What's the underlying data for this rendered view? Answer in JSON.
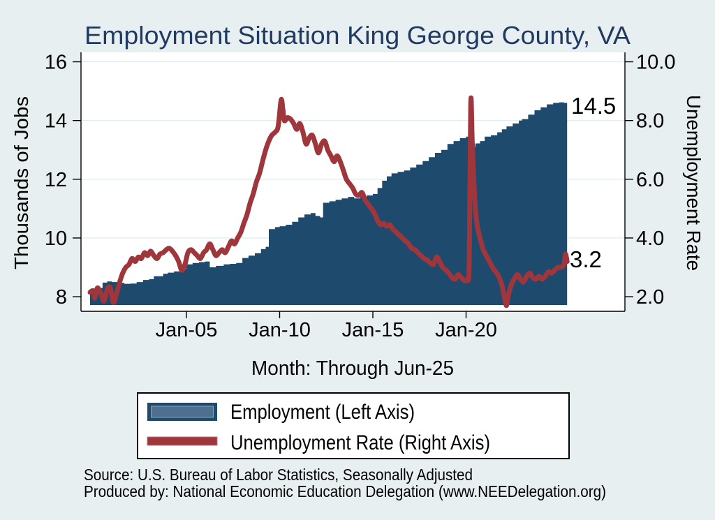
{
  "title": "Employment Situation King George  County, VA",
  "annotations": {
    "employment_end": "14.5",
    "unemployment_end": "3.2"
  },
  "legend": {
    "items": [
      {
        "label": "Employment (Left Axis)",
        "swatch": "navy-bar"
      },
      {
        "label": "Unemployment Rate (Right Axis)",
        "swatch": "red-line"
      }
    ]
  },
  "footer": {
    "source": "Source: U.S. Bureau of Labor Statistics, Seasonally Adjusted",
    "produced_by": "Produced by: National Economic Education Delegation (www.NEEDelegation.org)"
  },
  "colors": {
    "background": "#e8eff1",
    "plot_background": "#ffffff",
    "employment_fill": "#1e4a6e",
    "legend_bar_inner": "#4d7090",
    "unemployment_line": "#9e363c",
    "title_text": "#203a61",
    "gridline": "#dce9ec"
  },
  "chart_data": {
    "type": "line",
    "title": "Employment Situation King George  County, VA",
    "xlabel": "Month: Through Jun-25",
    "x_axis": {
      "ticks": [
        "Jan-05",
        "Jan-10",
        "Jan-15",
        "Jan-20"
      ],
      "tick_years": [
        2005,
        2010,
        2015,
        2020
      ],
      "data_range_years": [
        1999.83,
        2025.42
      ]
    },
    "y_axis_left": {
      "label": "Thousands of Jobs",
      "ticks": [
        "8",
        "10",
        "12",
        "14",
        "16"
      ],
      "tick_values": [
        8,
        10,
        12,
        14,
        16
      ],
      "range": [
        7.7,
        16.3
      ]
    },
    "y_axis_right": {
      "label": "Unemployment Rate",
      "ticks": [
        "2.0",
        "4.0",
        "6.0",
        "8.0",
        "10.0"
      ],
      "tick_values": [
        2,
        4,
        6,
        8,
        10
      ],
      "range": [
        1.7,
        10.3
      ]
    },
    "grid": {
      "horizontal_at_left_values": [
        10,
        12,
        14,
        16
      ]
    },
    "legend_position": "bottom",
    "series": [
      {
        "name": "Employment (Left Axis)",
        "kind": "area-step",
        "axis": "left",
        "units": "thousands of jobs",
        "end_label": "14.5",
        "points": [
          [
            1999.83,
            8.15
          ],
          [
            2000.0,
            8.1
          ],
          [
            2000.25,
            8.15
          ],
          [
            2000.42,
            8.3
          ],
          [
            2000.5,
            8.48
          ],
          [
            2000.75,
            8.52
          ],
          [
            2001.0,
            8.5
          ],
          [
            2001.33,
            8.47
          ],
          [
            2001.67,
            8.44
          ],
          [
            2002.0,
            8.45
          ],
          [
            2002.33,
            8.5
          ],
          [
            2002.67,
            8.57
          ],
          [
            2003.0,
            8.6
          ],
          [
            2003.25,
            8.7
          ],
          [
            2003.75,
            8.78
          ],
          [
            2004.0,
            8.82
          ],
          [
            2004.33,
            8.86
          ],
          [
            2004.67,
            8.95
          ],
          [
            2005.0,
            9.1
          ],
          [
            2005.33,
            9.15
          ],
          [
            2005.67,
            9.18
          ],
          [
            2006.0,
            9.2
          ],
          [
            2006.25,
            9.0
          ],
          [
            2006.58,
            9.05
          ],
          [
            2007.0,
            9.1
          ],
          [
            2007.33,
            9.12
          ],
          [
            2007.67,
            9.15
          ],
          [
            2008.0,
            9.32
          ],
          [
            2008.33,
            9.4
          ],
          [
            2008.67,
            9.48
          ],
          [
            2009.0,
            9.62
          ],
          [
            2009.25,
            9.7
          ],
          [
            2009.42,
            10.3
          ],
          [
            2009.75,
            10.37
          ],
          [
            2010.0,
            10.4
          ],
          [
            2010.33,
            10.45
          ],
          [
            2010.67,
            10.55
          ],
          [
            2011.0,
            10.7
          ],
          [
            2011.33,
            10.8
          ],
          [
            2011.67,
            10.85
          ],
          [
            2011.92,
            10.75
          ],
          [
            2012.17,
            10.7
          ],
          [
            2012.33,
            11.2
          ],
          [
            2012.67,
            11.25
          ],
          [
            2013.0,
            11.3
          ],
          [
            2013.33,
            11.35
          ],
          [
            2013.67,
            11.4
          ],
          [
            2014.0,
            11.35
          ],
          [
            2014.33,
            11.4
          ],
          [
            2014.67,
            11.45
          ],
          [
            2015.0,
            11.5
          ],
          [
            2015.25,
            11.7
          ],
          [
            2015.5,
            11.95
          ],
          [
            2015.75,
            12.1
          ],
          [
            2016.0,
            12.2
          ],
          [
            2016.33,
            12.25
          ],
          [
            2016.67,
            12.3
          ],
          [
            2017.0,
            12.4
          ],
          [
            2017.33,
            12.5
          ],
          [
            2017.67,
            12.62
          ],
          [
            2018.0,
            12.75
          ],
          [
            2018.33,
            12.9
          ],
          [
            2018.67,
            13.0
          ],
          [
            2019.0,
            13.2
          ],
          [
            2019.33,
            13.3
          ],
          [
            2019.67,
            13.4
          ],
          [
            2020.0,
            13.45
          ],
          [
            2020.25,
            13.1
          ],
          [
            2020.5,
            13.22
          ],
          [
            2020.75,
            13.3
          ],
          [
            2021.0,
            13.45
          ],
          [
            2021.33,
            13.5
          ],
          [
            2021.67,
            13.6
          ],
          [
            2021.92,
            13.7
          ],
          [
            2022.17,
            13.8
          ],
          [
            2022.5,
            13.9
          ],
          [
            2022.83,
            14.0
          ],
          [
            2023.0,
            14.05
          ],
          [
            2023.33,
            14.2
          ],
          [
            2023.67,
            14.35
          ],
          [
            2024.0,
            14.45
          ],
          [
            2024.33,
            14.55
          ],
          [
            2024.67,
            14.6
          ],
          [
            2025.0,
            14.62
          ],
          [
            2025.25,
            14.6
          ],
          [
            2025.42,
            14.5
          ]
        ]
      },
      {
        "name": "Unemployment Rate (Right Axis)",
        "kind": "line",
        "axis": "right",
        "units": "percent",
        "end_label": "3.2",
        "points": [
          [
            1999.83,
            2.15
          ],
          [
            2000.0,
            2.2
          ],
          [
            2000.08,
            1.95
          ],
          [
            2000.17,
            2.2
          ],
          [
            2000.25,
            2.3
          ],
          [
            2000.42,
            2.1
          ],
          [
            2000.58,
            1.85
          ],
          [
            2000.75,
            2.25
          ],
          [
            2000.92,
            2.3
          ],
          [
            2001.08,
            1.8
          ],
          [
            2001.25,
            2.1
          ],
          [
            2001.42,
            2.5
          ],
          [
            2001.58,
            2.8
          ],
          [
            2001.75,
            3.0
          ],
          [
            2001.92,
            3.1
          ],
          [
            2002.08,
            3.3
          ],
          [
            2002.25,
            3.2
          ],
          [
            2002.42,
            3.35
          ],
          [
            2002.58,
            3.3
          ],
          [
            2002.75,
            3.5
          ],
          [
            2002.92,
            3.4
          ],
          [
            2003.08,
            3.55
          ],
          [
            2003.25,
            3.4
          ],
          [
            2003.42,
            3.3
          ],
          [
            2003.58,
            3.45
          ],
          [
            2003.75,
            3.5
          ],
          [
            2003.92,
            3.6
          ],
          [
            2004.08,
            3.65
          ],
          [
            2004.25,
            3.55
          ],
          [
            2004.42,
            3.4
          ],
          [
            2004.58,
            3.2
          ],
          [
            2004.75,
            2.9
          ],
          [
            2004.92,
            3.1
          ],
          [
            2005.08,
            3.5
          ],
          [
            2005.25,
            3.6
          ],
          [
            2005.42,
            3.5
          ],
          [
            2005.58,
            3.4
          ],
          [
            2005.75,
            3.3
          ],
          [
            2005.92,
            3.5
          ],
          [
            2006.08,
            3.6
          ],
          [
            2006.25,
            3.8
          ],
          [
            2006.42,
            3.6
          ],
          [
            2006.58,
            3.4
          ],
          [
            2006.75,
            3.5
          ],
          [
            2006.92,
            3.6
          ],
          [
            2007.08,
            3.5
          ],
          [
            2007.25,
            3.7
          ],
          [
            2007.42,
            3.9
          ],
          [
            2007.58,
            3.8
          ],
          [
            2007.75,
            4.0
          ],
          [
            2007.92,
            4.2
          ],
          [
            2008.08,
            4.5
          ],
          [
            2008.25,
            4.8
          ],
          [
            2008.42,
            5.2
          ],
          [
            2008.58,
            5.5
          ],
          [
            2008.75,
            5.9
          ],
          [
            2008.92,
            6.2
          ],
          [
            2009.08,
            6.6
          ],
          [
            2009.25,
            7.0
          ],
          [
            2009.42,
            7.3
          ],
          [
            2009.58,
            7.5
          ],
          [
            2009.75,
            7.6
          ],
          [
            2009.92,
            7.8
          ],
          [
            2010.08,
            8.7
          ],
          [
            2010.17,
            8.4
          ],
          [
            2010.25,
            8.0
          ],
          [
            2010.42,
            8.1
          ],
          [
            2010.58,
            8.05
          ],
          [
            2010.75,
            7.9
          ],
          [
            2010.92,
            7.7
          ],
          [
            2011.08,
            7.9
          ],
          [
            2011.25,
            7.6
          ],
          [
            2011.42,
            7.2
          ],
          [
            2011.58,
            7.4
          ],
          [
            2011.75,
            7.5
          ],
          [
            2011.92,
            7.2
          ],
          [
            2012.08,
            6.9
          ],
          [
            2012.25,
            7.2
          ],
          [
            2012.42,
            7.3
          ],
          [
            2012.58,
            7.0
          ],
          [
            2012.75,
            6.8
          ],
          [
            2012.92,
            6.6
          ],
          [
            2013.08,
            6.8
          ],
          [
            2013.25,
            6.6
          ],
          [
            2013.42,
            6.3
          ],
          [
            2013.58,
            6.0
          ],
          [
            2013.75,
            5.85
          ],
          [
            2013.92,
            5.7
          ],
          [
            2014.08,
            5.5
          ],
          [
            2014.25,
            5.45
          ],
          [
            2014.42,
            5.55
          ],
          [
            2014.58,
            5.3
          ],
          [
            2014.75,
            5.15
          ],
          [
            2014.92,
            5.0
          ],
          [
            2015.08,
            4.85
          ],
          [
            2015.25,
            4.6
          ],
          [
            2015.42,
            4.45
          ],
          [
            2015.58,
            4.5
          ],
          [
            2015.75,
            4.4
          ],
          [
            2015.92,
            4.45
          ],
          [
            2016.08,
            4.3
          ],
          [
            2016.25,
            4.2
          ],
          [
            2016.42,
            4.1
          ],
          [
            2016.58,
            4.0
          ],
          [
            2016.75,
            3.9
          ],
          [
            2016.92,
            3.8
          ],
          [
            2017.08,
            3.65
          ],
          [
            2017.25,
            3.6
          ],
          [
            2017.42,
            3.5
          ],
          [
            2017.58,
            3.4
          ],
          [
            2017.75,
            3.3
          ],
          [
            2017.92,
            3.25
          ],
          [
            2018.08,
            3.15
          ],
          [
            2018.25,
            3.1
          ],
          [
            2018.42,
            3.35
          ],
          [
            2018.58,
            3.2
          ],
          [
            2018.75,
            3.0
          ],
          [
            2018.92,
            2.9
          ],
          [
            2019.08,
            2.8
          ],
          [
            2019.25,
            2.65
          ],
          [
            2019.42,
            2.6
          ],
          [
            2019.58,
            2.75
          ],
          [
            2019.75,
            2.65
          ],
          [
            2019.92,
            2.55
          ],
          [
            2020.08,
            2.6
          ],
          [
            2020.17,
            3.2
          ],
          [
            2020.25,
            8.6
          ],
          [
            2020.33,
            7.3
          ],
          [
            2020.42,
            5.9
          ],
          [
            2020.5,
            5.0
          ],
          [
            2020.58,
            4.5
          ],
          [
            2020.67,
            4.2
          ],
          [
            2020.75,
            4.0
          ],
          [
            2020.83,
            3.8
          ],
          [
            2020.92,
            3.6
          ],
          [
            2021.08,
            3.4
          ],
          [
            2021.25,
            3.2
          ],
          [
            2021.42,
            3.0
          ],
          [
            2021.58,
            2.85
          ],
          [
            2021.75,
            2.7
          ],
          [
            2021.92,
            2.4
          ],
          [
            2022.08,
            1.9
          ],
          [
            2022.17,
            1.7
          ],
          [
            2022.25,
            2.0
          ],
          [
            2022.42,
            2.4
          ],
          [
            2022.58,
            2.6
          ],
          [
            2022.75,
            2.75
          ],
          [
            2022.92,
            2.6
          ],
          [
            2023.08,
            2.5
          ],
          [
            2023.25,
            2.7
          ],
          [
            2023.42,
            2.8
          ],
          [
            2023.58,
            2.65
          ],
          [
            2023.75,
            2.6
          ],
          [
            2023.92,
            2.7
          ],
          [
            2024.08,
            2.6
          ],
          [
            2024.25,
            2.7
          ],
          [
            2024.42,
            2.85
          ],
          [
            2024.58,
            2.8
          ],
          [
            2024.75,
            2.9
          ],
          [
            2024.92,
            3.0
          ],
          [
            2025.08,
            3.0
          ],
          [
            2025.25,
            3.1
          ],
          [
            2025.33,
            3.45
          ],
          [
            2025.42,
            3.2
          ]
        ]
      }
    ]
  }
}
